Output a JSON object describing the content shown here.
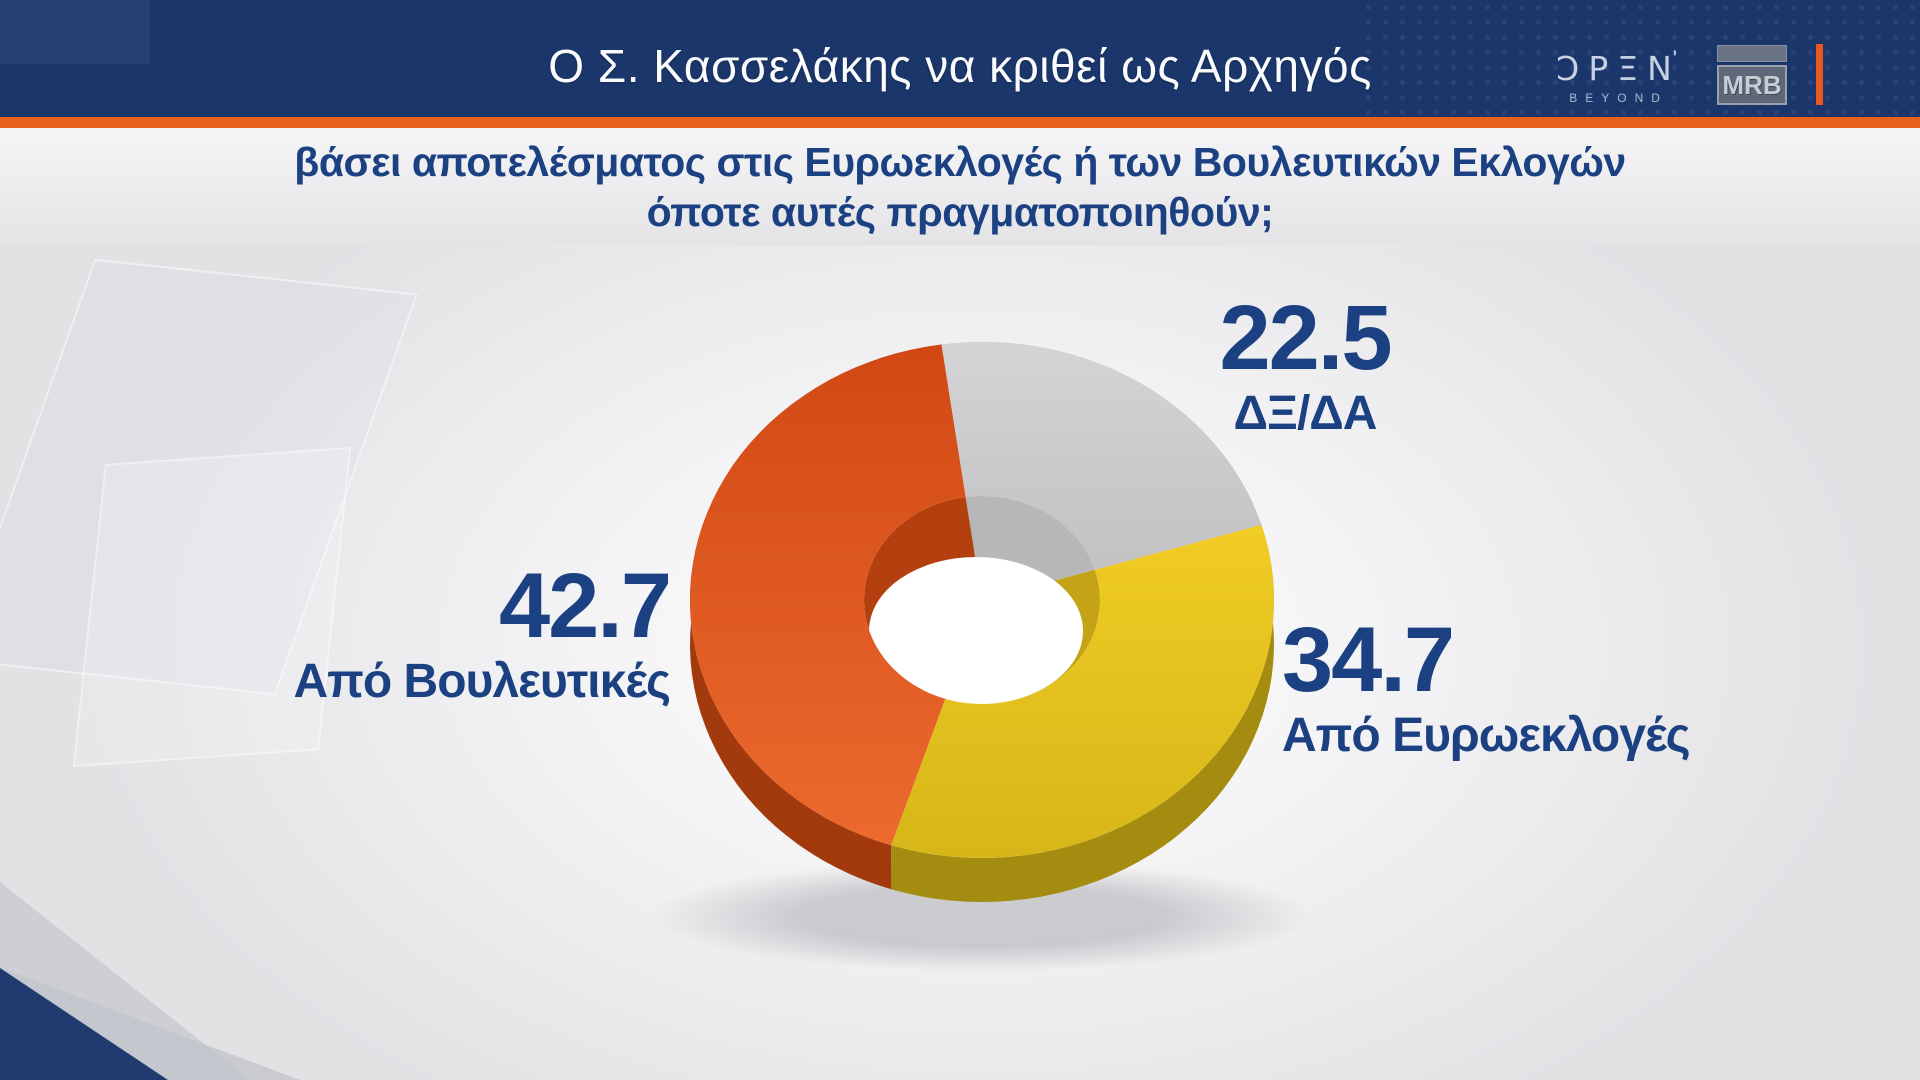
{
  "header": {
    "title": "Ο Σ. Κασσελάκης να κριθεί ως Αρχηγός",
    "open_logo": {
      "text": "ƆPΞN",
      "tick": "'",
      "tagline": "BEYOND"
    },
    "mrb_logo": {
      "text": "MRB"
    }
  },
  "question": {
    "line1": "βάσει αποτελέσματος στις Ευρωεκλογές ή των Βουλευτικών Εκλογών",
    "line2": "όποτε αυτές πραγματοποιηθούν;"
  },
  "chart_data": {
    "type": "pie",
    "style": "3d-donut",
    "title": "Ο Σ. Κασσελάκης να κριθεί ως Αρχηγός",
    "subtitle": "βάσει αποτελέσματος στις Ευρωεκλογές ή των Βουλευτικών Εκλογών όποτε αυτές πραγματοποιηθούν;",
    "unit": "percent",
    "direction": "clockwise",
    "start_angle_deg": -8,
    "slices": [
      {
        "label": "ΔΞ/ΔΑ",
        "value": 22.5,
        "top": [
          "#D4D4D6",
          "#C2C2C5"
        ],
        "side": "#9FA0A4",
        "wall": "#B7B7BA"
      },
      {
        "label": "Από Ευρωεκλογές",
        "value": 34.7,
        "top": [
          "#F1CC24",
          "#D7B619"
        ],
        "side": "#A38C10",
        "wall": "#C4A416"
      },
      {
        "label": "Από Βουλευτικές",
        "value": 42.7,
        "top": [
          "#D14814",
          "#EC6A2E"
        ],
        "side": "#A23A0E",
        "wall": "#B4400F"
      }
    ],
    "label_color": "#1B4182"
  },
  "colors": {
    "accent_orange": "#E8611D",
    "header_bg": "#1B366B",
    "question_bg": "#EFEFF1",
    "text_navy": "#1B4182"
  }
}
